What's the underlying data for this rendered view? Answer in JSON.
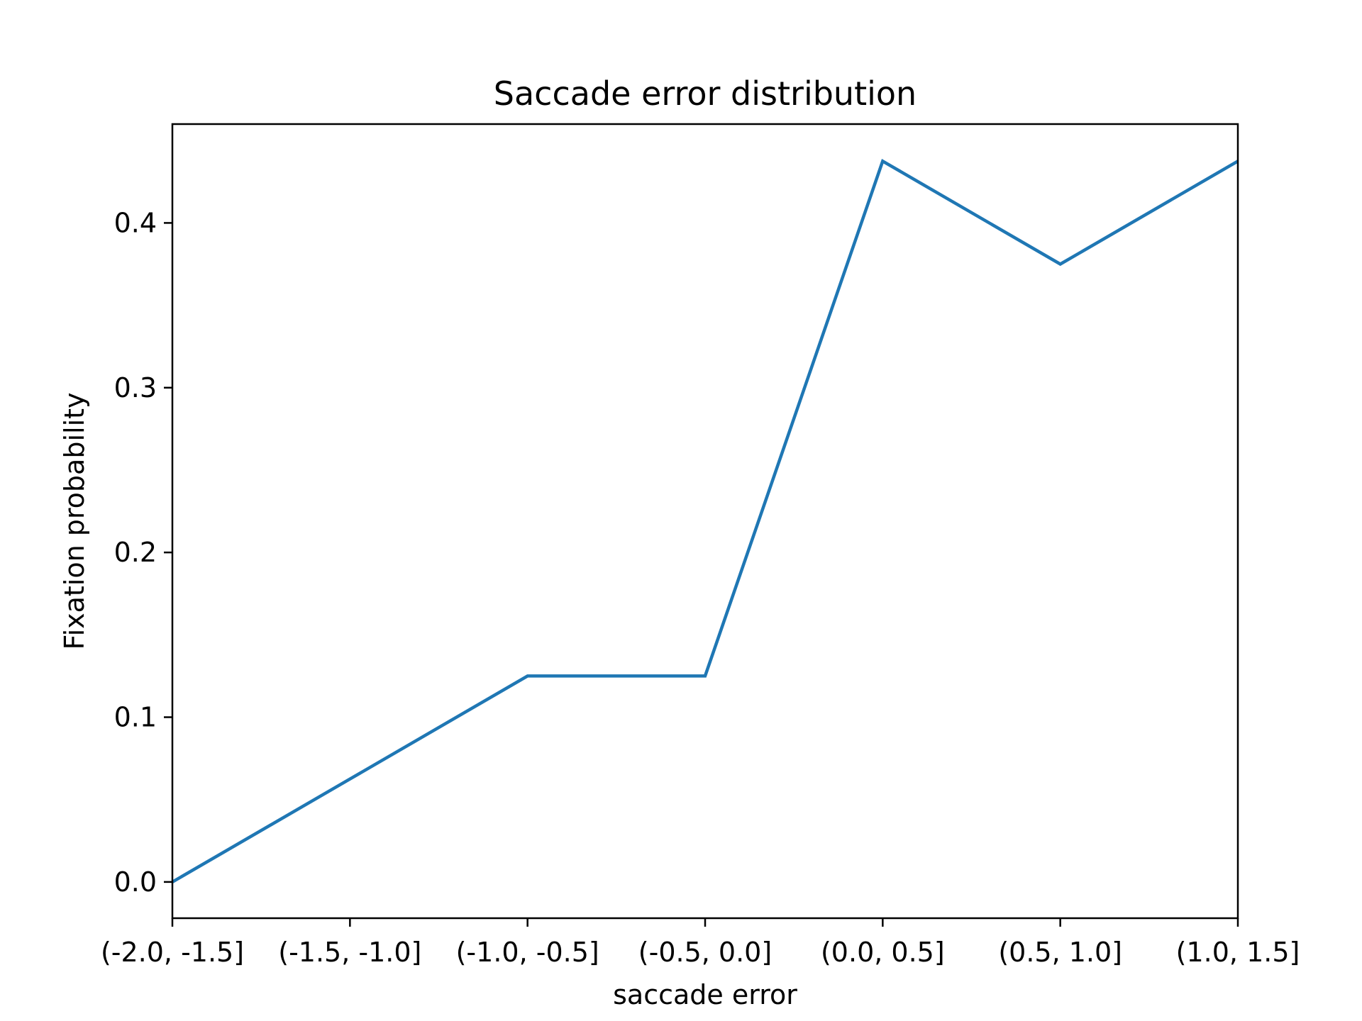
{
  "chart_data": {
    "type": "line",
    "title": "Saccade error distribution",
    "xlabel": "saccade error",
    "ylabel": "Fixation probability",
    "categories": [
      "(-2.0, -1.5]",
      "(-1.5, -1.0]",
      "(-1.0, -0.5]",
      "(-0.5, 0.0]",
      "(0.0, 0.5]",
      "(0.5, 1.0]",
      "(1.0, 1.5]"
    ],
    "series": [
      {
        "values": [
          0.0,
          0.0625,
          0.125,
          0.125,
          0.4375,
          0.375,
          0.4375
        ],
        "color": "#1f77b4"
      }
    ],
    "ylim": [
      -0.022,
      0.46
    ],
    "yticks": [
      0.0,
      0.1,
      0.2,
      0.3,
      0.4
    ],
    "ytick_labels": [
      "0.0",
      "0.1",
      "0.2",
      "0.3",
      "0.4"
    ],
    "grid": false,
    "legend": "none"
  }
}
